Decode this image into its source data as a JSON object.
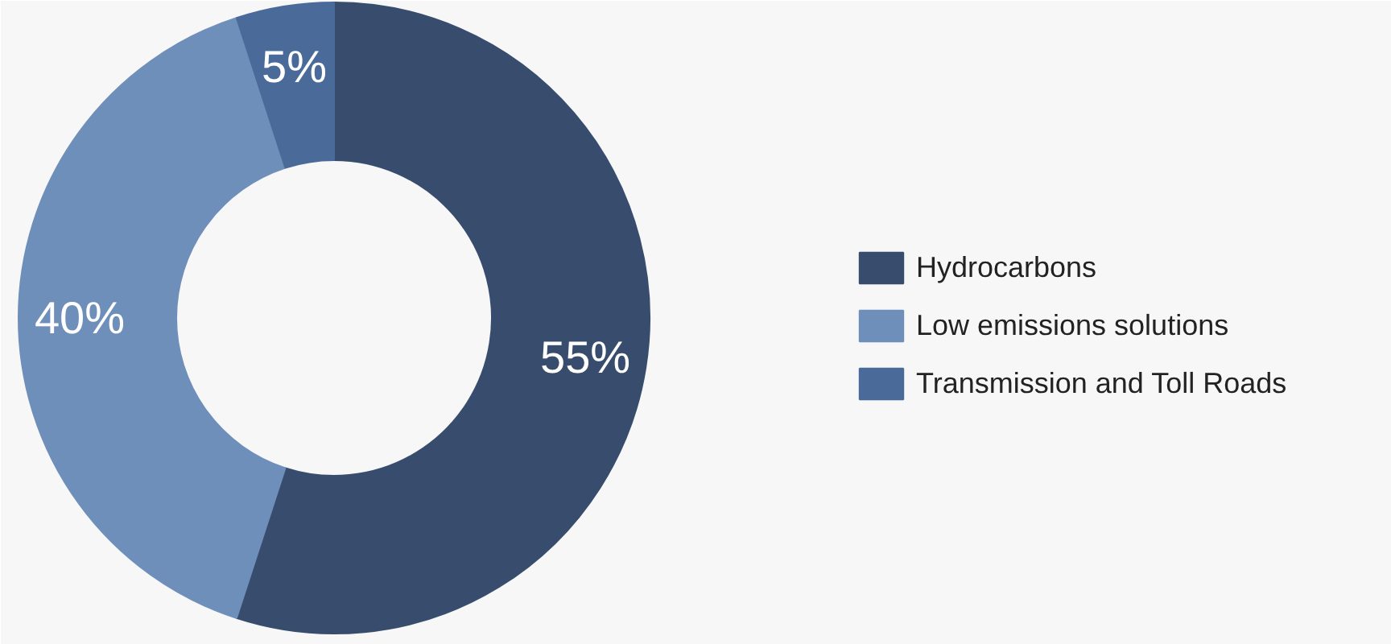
{
  "chart_data": {
    "type": "donut",
    "categories": [
      "Hydrocarbons",
      "Low emissions solutions",
      "Transmission and Toll Roads"
    ],
    "values": [
      55,
      40,
      5
    ],
    "colors": [
      "#384d6e",
      "#6f8fbb",
      "#4a6a9a"
    ],
    "value_labels": [
      "55%",
      "40%",
      "5%"
    ],
    "legend": "right"
  }
}
